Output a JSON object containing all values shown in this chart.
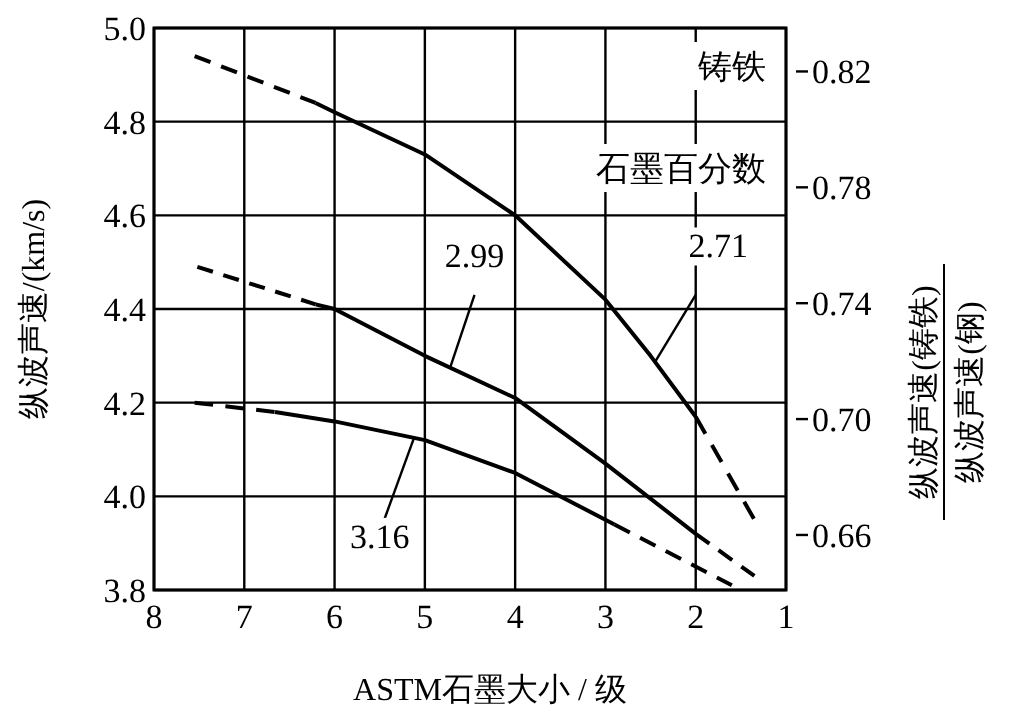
{
  "chart_data": {
    "type": "line",
    "xlabel": "ASTM石墨大小 / 级",
    "ylabel": "纵波声速/(km/s)",
    "y2label": "纵波声速(铸铁)\n纵波声速(钢)",
    "annotations": [
      "铸铁",
      "石墨百分数"
    ],
    "xlim": [
      8,
      1
    ],
    "xticks": [
      8,
      7,
      6,
      5,
      4,
      3,
      2,
      1
    ],
    "ylim": [
      3.8,
      5.0
    ],
    "yticks": [
      3.8,
      {
        "value": 4,
        "label": "4.0"
      },
      4.2,
      4.4,
      4.6,
      4.8,
      {
        "value": 5,
        "label": "5.0"
      }
    ],
    "y2lim": [
      0.641,
      0.835
    ],
    "y2ticks": [
      0.66,
      {
        "value": 0.7,
        "label": "0.70"
      },
      0.74,
      0.78,
      0.82
    ],
    "grid": true,
    "marker": "none",
    "series": [
      {
        "line_style": "dashed",
        "color": "#000000",
        "x": [
          7.55,
          6.21
        ],
        "values": [
          4.94,
          4.84
        ]
      },
      {
        "name": "2.71",
        "line_style": "solid",
        "color": "#000000",
        "x": [
          6.21,
          6,
          5,
          4,
          3,
          2.5,
          2
        ],
        "values": [
          4.84,
          4.82,
          4.73,
          4.6,
          4.42,
          4.3,
          4.17
        ]
      },
      {
        "line_style": "dashed",
        "color": "#000000",
        "x": [
          2,
          1.35
        ],
        "values": [
          4.17,
          3.95
        ]
      },
      {
        "line_style": "dashed",
        "color": "#000000",
        "x": [
          7.52,
          6.21
        ],
        "values": [
          4.49,
          4.41
        ]
      },
      {
        "name": "2.99",
        "line_style": "solid",
        "color": "#000000",
        "x": [
          6.21,
          6,
          5,
          4,
          3,
          2
        ],
        "values": [
          4.41,
          4.4,
          4.3,
          4.21,
          4.07,
          3.92
        ]
      },
      {
        "line_style": "dashed",
        "color": "#000000",
        "x": [
          2,
          1.35
        ],
        "values": [
          3.92,
          3.83
        ]
      },
      {
        "line_style": "dashed",
        "color": "#000000",
        "x": [
          7.55,
          6.66
        ],
        "values": [
          4.2,
          4.18
        ]
      },
      {
        "name": "3.16",
        "line_style": "solid",
        "color": "#000000",
        "x": [
          6.66,
          6,
          5,
          4,
          2.9
        ],
        "values": [
          4.18,
          4.16,
          4.12,
          4.05,
          3.94
        ]
      },
      {
        "line_style": "dashed",
        "color": "#000000",
        "x": [
          2.9,
          1.6
        ],
        "values": [
          3.94,
          3.81
        ]
      }
    ]
  }
}
